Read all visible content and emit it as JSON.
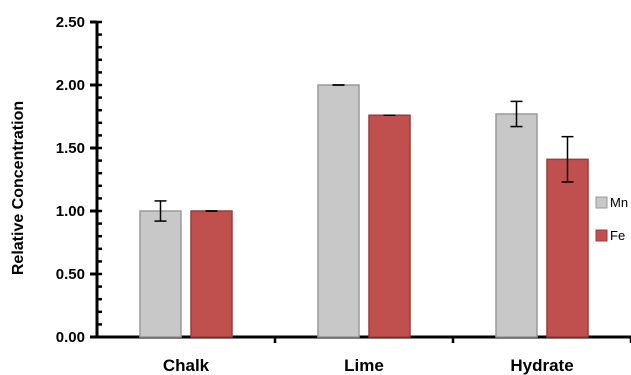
{
  "chart_data": {
    "type": "bar",
    "categories": [
      "Chalk",
      "Lime",
      "Hydrate"
    ],
    "series": [
      {
        "name": "Mn",
        "values": [
          1.0,
          2.0,
          1.77
        ],
        "errors": [
          0.08,
          0.0,
          0.1
        ],
        "color": "#c8c8c8",
        "stroke": "#9a9a9a"
      },
      {
        "name": "Fe",
        "values": [
          1.0,
          1.76,
          1.41
        ],
        "errors": [
          0.0,
          0.0,
          0.18
        ],
        "color": "#c0504d",
        "stroke": "#9c3b39"
      }
    ],
    "title": "",
    "xlabel": "",
    "ylabel": "Relative Concentration",
    "ylim": [
      0,
      2.5
    ],
    "yticks": [
      "0.00",
      "0.50",
      "1.00",
      "1.50",
      "2.00",
      "2.50"
    ],
    "grid": false,
    "legend_position": "right"
  }
}
